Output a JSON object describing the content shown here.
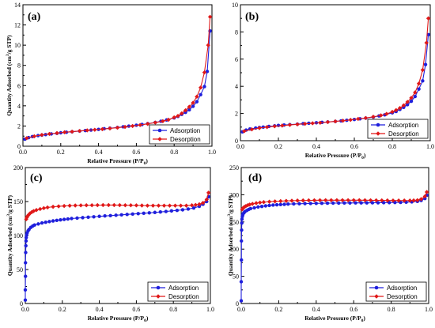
{
  "chart_data": [
    {
      "type": "line",
      "panel_label": "(a)",
      "xlabel": "Relative Pressure (P/P",
      "xlabel_sub": "0",
      "xlabel_end": ")",
      "ylabel": "Quantity Adsorbed (cm",
      "ylabel_sup": "3",
      "ylabel_end": "/g STP)",
      "xlim": [
        0.0,
        1.0
      ],
      "ylim": [
        0,
        14
      ],
      "xticks": [
        "0.0",
        "0.2",
        "0.4",
        "0.6",
        "0.8",
        "1.0"
      ],
      "yticks": [
        "0",
        "2",
        "4",
        "6",
        "8",
        "10",
        "12",
        "14"
      ],
      "legend_position": "bottom-right",
      "series": [
        {
          "name": "Adsorption",
          "color": "#1f1fdc",
          "marker": "circle",
          "x": [
            0.01,
            0.03,
            0.05,
            0.08,
            0.1,
            0.12,
            0.15,
            0.18,
            0.2,
            0.23,
            0.26,
            0.3,
            0.33,
            0.36,
            0.4,
            0.43,
            0.46,
            0.5,
            0.53,
            0.56,
            0.6,
            0.63,
            0.66,
            0.7,
            0.73,
            0.76,
            0.8,
            0.82,
            0.84,
            0.86,
            0.88,
            0.9,
            0.92,
            0.94,
            0.96,
            0.975,
            0.99
          ],
          "y": [
            0.7,
            0.85,
            0.95,
            1.05,
            1.1,
            1.15,
            1.22,
            1.28,
            1.33,
            1.38,
            1.43,
            1.5,
            1.55,
            1.6,
            1.67,
            1.73,
            1.78,
            1.85,
            1.92,
            1.99,
            2.08,
            2.15,
            2.23,
            2.35,
            2.47,
            2.6,
            2.8,
            2.95,
            3.15,
            3.35,
            3.6,
            3.95,
            4.4,
            5.1,
            5.9,
            7.4,
            11.4
          ]
        },
        {
          "name": "Desorption",
          "color": "#e01818",
          "marker": "diamond",
          "x": [
            0.99,
            0.98,
            0.96,
            0.94,
            0.92,
            0.9,
            0.88,
            0.86,
            0.84,
            0.82,
            0.8,
            0.77,
            0.74,
            0.7,
            0.66,
            0.62,
            0.58,
            0.54,
            0.5,
            0.46,
            0.42,
            0.38,
            0.34,
            0.3,
            0.26,
            0.22,
            0.18,
            0.14,
            0.1,
            0.06,
            0.02
          ],
          "y": [
            12.8,
            10.0,
            7.3,
            5.8,
            4.9,
            4.3,
            3.9,
            3.55,
            3.25,
            3.0,
            2.85,
            2.62,
            2.48,
            2.34,
            2.21,
            2.1,
            2.0,
            1.91,
            1.83,
            1.76,
            1.69,
            1.63,
            1.57,
            1.51,
            1.44,
            1.38,
            1.3,
            1.22,
            1.12,
            0.98,
            0.8
          ]
        }
      ]
    },
    {
      "type": "line",
      "panel_label": "(b)",
      "xlabel": "Relative Pressure (P/P",
      "xlabel_sub": "0",
      "xlabel_end": ")",
      "ylabel": "",
      "ylabel_sup": "",
      "ylabel_end": "",
      "xlim": [
        0.0,
        1.0
      ],
      "ylim": [
        0,
        10
      ],
      "xticks": [
        "0.0",
        "0.2",
        "0.4",
        "0.6",
        "0.8",
        "1.0"
      ],
      "yticks": [
        "0",
        "2",
        "4",
        "6",
        "8",
        "10"
      ],
      "legend_position": "bottom-right",
      "series": [
        {
          "name": "Adsorption",
          "color": "#1f1fdc",
          "marker": "circle",
          "x": [
            0.01,
            0.03,
            0.05,
            0.08,
            0.1,
            0.12,
            0.15,
            0.18,
            0.2,
            0.23,
            0.26,
            0.3,
            0.33,
            0.36,
            0.4,
            0.43,
            0.46,
            0.5,
            0.53,
            0.56,
            0.6,
            0.63,
            0.66,
            0.7,
            0.73,
            0.76,
            0.8,
            0.82,
            0.84,
            0.86,
            0.88,
            0.9,
            0.92,
            0.94,
            0.96,
            0.975,
            0.99
          ],
          "y": [
            0.65,
            0.78,
            0.86,
            0.93,
            0.97,
            1.0,
            1.05,
            1.09,
            1.12,
            1.15,
            1.18,
            1.22,
            1.25,
            1.28,
            1.32,
            1.35,
            1.38,
            1.42,
            1.46,
            1.5,
            1.56,
            1.61,
            1.66,
            1.74,
            1.82,
            1.9,
            2.05,
            2.15,
            2.3,
            2.45,
            2.65,
            2.9,
            3.25,
            3.8,
            4.4,
            5.6,
            7.8
          ]
        },
        {
          "name": "Desorption",
          "color": "#e01818",
          "marker": "diamond",
          "x": [
            0.99,
            0.98,
            0.96,
            0.94,
            0.92,
            0.9,
            0.88,
            0.86,
            0.84,
            0.82,
            0.8,
            0.77,
            0.74,
            0.7,
            0.66,
            0.62,
            0.58,
            0.54,
            0.5,
            0.46,
            0.42,
            0.38,
            0.34,
            0.3,
            0.26,
            0.22,
            0.18,
            0.14,
            0.1,
            0.06,
            0.02
          ],
          "y": [
            9.0,
            7.2,
            5.2,
            4.2,
            3.55,
            3.15,
            2.85,
            2.6,
            2.4,
            2.25,
            2.12,
            1.97,
            1.86,
            1.76,
            1.67,
            1.6,
            1.53,
            1.47,
            1.42,
            1.37,
            1.32,
            1.28,
            1.24,
            1.2,
            1.16,
            1.11,
            1.06,
            1.0,
            0.93,
            0.83,
            0.7
          ]
        }
      ]
    },
    {
      "type": "line",
      "panel_label": "(c)",
      "xlabel": "Relative Pressure (P/P",
      "xlabel_sub": "0",
      "xlabel_end": ")",
      "ylabel": "Quantity Adsorbed (cm",
      "ylabel_sup": "3",
      "ylabel_end": "/g STP)",
      "xlim": [
        0.0,
        1.0
      ],
      "ylim": [
        0,
        200
      ],
      "xticks": [
        "0.0",
        "0.2",
        "0.4",
        "0.6",
        "0.8",
        "1.0"
      ],
      "yticks": [
        "0",
        "50",
        "100",
        "150",
        "200"
      ],
      "legend_position": "bottom-right",
      "series": [
        {
          "name": "Adsorption",
          "color": "#1f1fdc",
          "marker": "circle",
          "x": [
            0.0,
            0.0,
            0.001,
            0.001,
            0.002,
            0.003,
            0.004,
            0.005,
            0.007,
            0.01,
            0.015,
            0.02,
            0.03,
            0.04,
            0.05,
            0.07,
            0.09,
            0.11,
            0.13,
            0.15,
            0.17,
            0.19,
            0.21,
            0.23,
            0.25,
            0.28,
            0.31,
            0.34,
            0.37,
            0.4,
            0.43,
            0.46,
            0.49,
            0.52,
            0.55,
            0.58,
            0.61,
            0.64,
            0.67,
            0.7,
            0.73,
            0.76,
            0.79,
            0.82,
            0.85,
            0.88,
            0.91,
            0.94,
            0.96,
            0.98,
            0.99
          ],
          "y": [
            5,
            20,
            40,
            60,
            75,
            85,
            92,
            97,
            101,
            104,
            107,
            109,
            112,
            114,
            115.5,
            117,
            118.5,
            119.5,
            120.5,
            121.5,
            122.3,
            123,
            123.7,
            124.3,
            125,
            125.7,
            126.3,
            127,
            127.6,
            128.2,
            128.8,
            129.3,
            129.9,
            130.4,
            131,
            131.6,
            132.2,
            132.8,
            133.4,
            134,
            134.7,
            135.4,
            136.2,
            137,
            137.8,
            139,
            140.5,
            143,
            146,
            150,
            157
          ]
        },
        {
          "name": "Desorption",
          "color": "#e01818",
          "marker": "diamond",
          "x": [
            0.99,
            0.98,
            0.96,
            0.94,
            0.92,
            0.9,
            0.87,
            0.84,
            0.81,
            0.78,
            0.75,
            0.72,
            0.69,
            0.66,
            0.63,
            0.6,
            0.57,
            0.54,
            0.51,
            0.48,
            0.45,
            0.42,
            0.39,
            0.36,
            0.33,
            0.3,
            0.27,
            0.24,
            0.21,
            0.18,
            0.15,
            0.12,
            0.1,
            0.08,
            0.06,
            0.045,
            0.035,
            0.025,
            0.018,
            0.012,
            0.008,
            0.005
          ],
          "y": [
            163,
            153,
            148,
            146,
            145,
            144.5,
            144,
            144,
            144,
            144,
            144,
            144,
            144,
            144,
            144.2,
            144.4,
            144.5,
            144.6,
            144.7,
            144.8,
            144.8,
            144.8,
            144.7,
            144.6,
            144.5,
            144.4,
            144.2,
            143.9,
            143.5,
            143,
            142.3,
            141.3,
            140.3,
            139,
            137.5,
            136,
            134.5,
            132.5,
            130.5,
            128.5,
            126.5,
            124
          ]
        }
      ]
    },
    {
      "type": "line",
      "panel_label": "(d)",
      "xlabel": "Relative Pressure (P/P",
      "xlabel_sub": "0",
      "xlabel_end": ")",
      "ylabel": "Quantity Adsorbed (cm",
      "ylabel_sup": "3",
      "ylabel_end": "/g STP)",
      "xlim": [
        0.0,
        1.0
      ],
      "ylim": [
        0,
        250
      ],
      "xticks": [
        "0.0",
        "0.2",
        "0.4",
        "0.6",
        "0.8",
        "1.0"
      ],
      "yticks": [
        "0",
        "50",
        "100",
        "150",
        "200",
        "250"
      ],
      "legend_position": "bottom-right",
      "series": [
        {
          "name": "Adsorption",
          "color": "#1f1fdc",
          "marker": "circle",
          "x": [
            0.0,
            0.0,
            0.001,
            0.001,
            0.002,
            0.003,
            0.004,
            0.006,
            0.008,
            0.01,
            0.015,
            0.02,
            0.03,
            0.04,
            0.05,
            0.07,
            0.09,
            0.11,
            0.13,
            0.15,
            0.17,
            0.19,
            0.21,
            0.23,
            0.25,
            0.28,
            0.31,
            0.34,
            0.37,
            0.4,
            0.43,
            0.46,
            0.49,
            0.52,
            0.55,
            0.58,
            0.61,
            0.64,
            0.67,
            0.7,
            0.73,
            0.76,
            0.79,
            0.82,
            0.85,
            0.88,
            0.91,
            0.94,
            0.96,
            0.98,
            0.99
          ],
          "y": [
            5,
            40,
            80,
            115,
            135,
            148,
            155,
            160,
            163,
            165,
            167,
            169,
            171,
            173,
            174.5,
            176,
            177.5,
            178.5,
            179.5,
            180.3,
            181,
            181.5,
            182,
            182.4,
            182.8,
            183.2,
            183.5,
            183.8,
            184,
            184.2,
            184.4,
            184.5,
            184.6,
            184.7,
            184.8,
            184.9,
            185,
            185,
            185.1,
            185.2,
            185.3,
            185.4,
            185.5,
            185.7,
            186,
            186.3,
            186.8,
            187.8,
            189.5,
            193,
            199
          ]
        },
        {
          "name": "Desorption",
          "color": "#e01818",
          "marker": "diamond",
          "x": [
            0.99,
            0.98,
            0.96,
            0.94,
            0.92,
            0.9,
            0.87,
            0.84,
            0.81,
            0.78,
            0.75,
            0.72,
            0.69,
            0.66,
            0.63,
            0.6,
            0.57,
            0.54,
            0.51,
            0.48,
            0.45,
            0.42,
            0.39,
            0.36,
            0.33,
            0.3,
            0.27,
            0.24,
            0.21,
            0.18,
            0.15,
            0.12,
            0.1,
            0.08,
            0.06,
            0.045,
            0.035,
            0.025,
            0.018,
            0.012,
            0.008,
            0.005
          ],
          "y": [
            205,
            197,
            192,
            190,
            189.5,
            189.3,
            189.3,
            189.3,
            189.4,
            189.5,
            189.6,
            189.7,
            189.8,
            189.9,
            190,
            190,
            190,
            190,
            190,
            190,
            190,
            189.9,
            189.8,
            189.7,
            189.5,
            189.3,
            189,
            188.7,
            188.3,
            187.8,
            187.2,
            186.4,
            185.6,
            184.6,
            183.3,
            182,
            180.8,
            179.3,
            177.8,
            176.3,
            174.8,
            173
          ]
        }
      ]
    }
  ]
}
